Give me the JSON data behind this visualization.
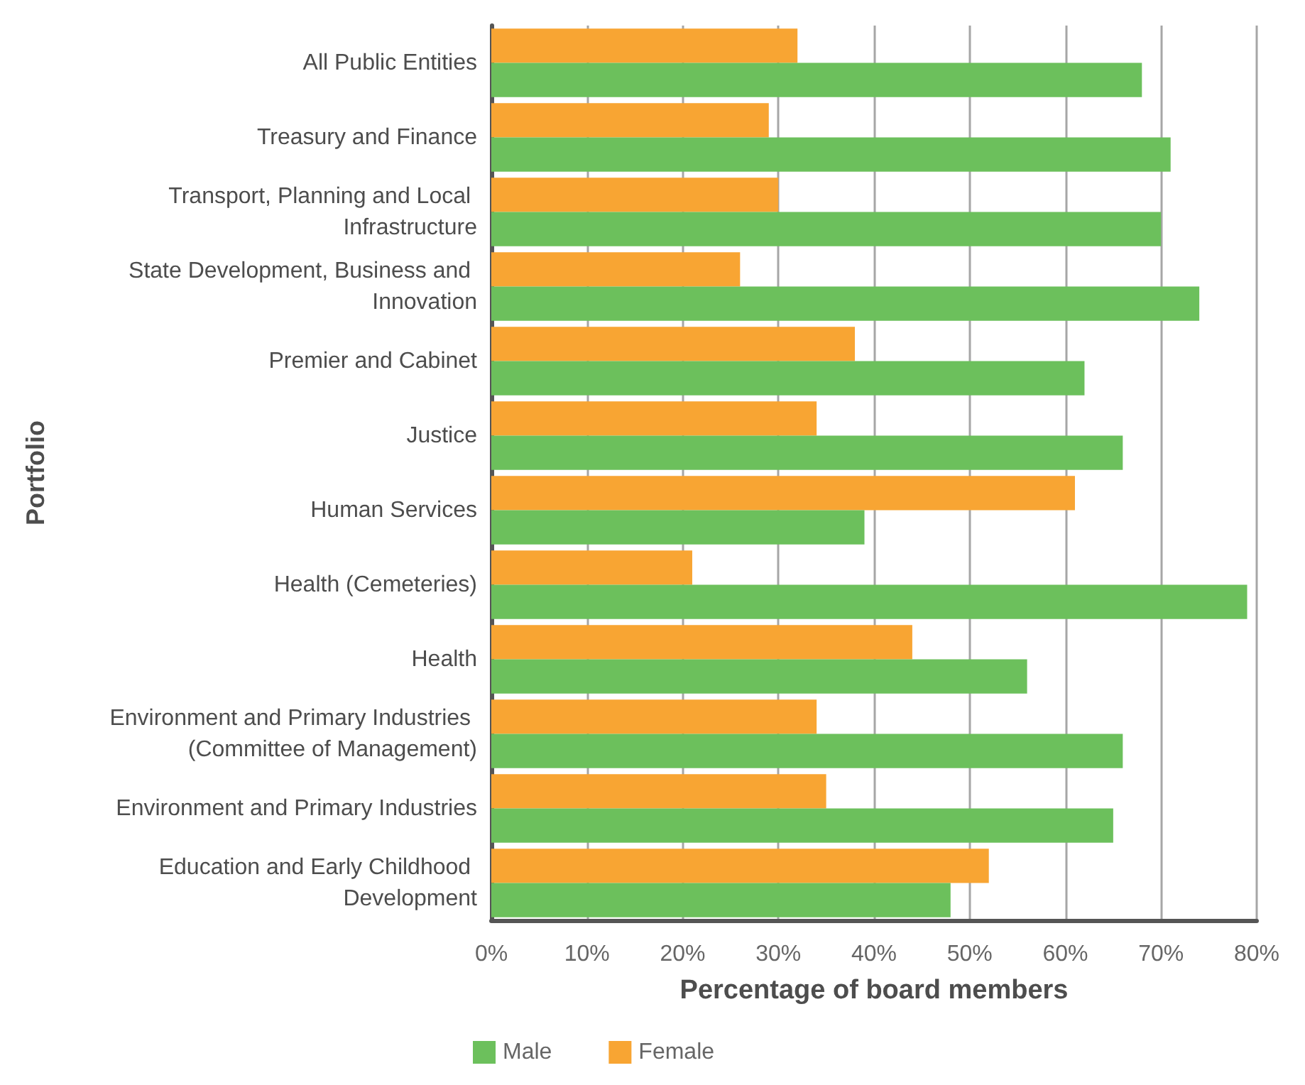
{
  "chart_data": {
    "type": "bar",
    "orientation": "horizontal",
    "xlabel": "Percentage of board members",
    "ylabel": "Portfolio",
    "categories": [
      "All Public Entities",
      "Treasury and Finance",
      "Transport, Planning and Local Infrastructure",
      "State Development, Business and Innovation",
      "Premier and Cabinet",
      "Justice",
      "Human Services",
      "Health (Cemeteries)",
      "Health",
      "Environment and Primary Industries (Committee of Management)",
      "Environment and Primary Industries",
      "Education and Early Childhood Development"
    ],
    "series": [
      {
        "name": "Male",
        "color": "#6cc05c",
        "values": [
          68,
          71,
          70,
          74,
          62,
          66,
          39,
          79,
          56,
          66,
          65,
          48
        ]
      },
      {
        "name": "Female",
        "color": "#f8a533",
        "values": [
          32,
          29,
          30,
          26,
          38,
          34,
          61,
          21,
          44,
          34,
          35,
          52
        ]
      }
    ],
    "xlim": [
      0,
      80
    ],
    "xticks": [
      {
        "value": 0,
        "label": "0%"
      },
      {
        "value": 10,
        "label": "10%"
      },
      {
        "value": 20,
        "label": "20%"
      },
      {
        "value": 30,
        "label": "30%"
      },
      {
        "value": 40,
        "label": "40%"
      },
      {
        "value": 50,
        "label": "50%"
      },
      {
        "value": 60,
        "label": "60%"
      },
      {
        "value": 70,
        "label": "70%"
      },
      {
        "value": 80,
        "label": "80%"
      }
    ],
    "grid": "x",
    "legend": "bottom"
  }
}
